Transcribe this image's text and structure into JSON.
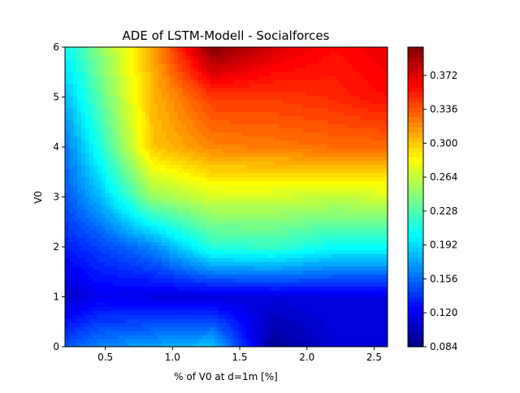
{
  "chart_data": {
    "type": "heatmap",
    "title": "ADE of LSTM-Modell - Socialforces",
    "xlabel": "% of V0 at d=1m [%]",
    "ylabel": "V0",
    "xlim": [
      0.2,
      2.6
    ],
    "ylim": [
      0,
      6
    ],
    "x_ticks": [
      "0.5",
      "1.0",
      "1.5",
      "2.0",
      "2.5"
    ],
    "y_ticks": [
      "0",
      "1",
      "2",
      "3",
      "4",
      "5",
      "6"
    ],
    "colorbar": {
      "min": 0.084,
      "max": 0.402,
      "ticks": [
        "0.084",
        "0.120",
        "0.156",
        "0.192",
        "0.228",
        "0.264",
        "0.300",
        "0.336",
        "0.372"
      ],
      "colormap": "jet"
    },
    "x": [
      0.2,
      0.45,
      0.85,
      1.3,
      1.75,
      2.2,
      2.6
    ],
    "y": [
      0,
      1,
      2,
      3,
      4,
      5,
      6
    ],
    "z": [
      [
        0.15,
        0.165,
        0.175,
        0.185,
        0.09,
        0.11,
        0.11
      ],
      [
        0.105,
        0.12,
        0.115,
        0.112,
        0.113,
        0.115,
        0.115
      ],
      [
        0.132,
        0.143,
        0.165,
        0.215,
        0.22,
        0.205,
        0.205
      ],
      [
        0.15,
        0.18,
        0.25,
        0.27,
        0.268,
        0.265,
        0.268
      ],
      [
        0.16,
        0.21,
        0.3,
        0.32,
        0.324,
        0.328,
        0.328
      ],
      [
        0.18,
        0.23,
        0.305,
        0.345,
        0.345,
        0.35,
        0.36
      ],
      [
        0.205,
        0.245,
        0.31,
        0.402,
        0.375,
        0.36,
        0.37
      ]
    ]
  }
}
